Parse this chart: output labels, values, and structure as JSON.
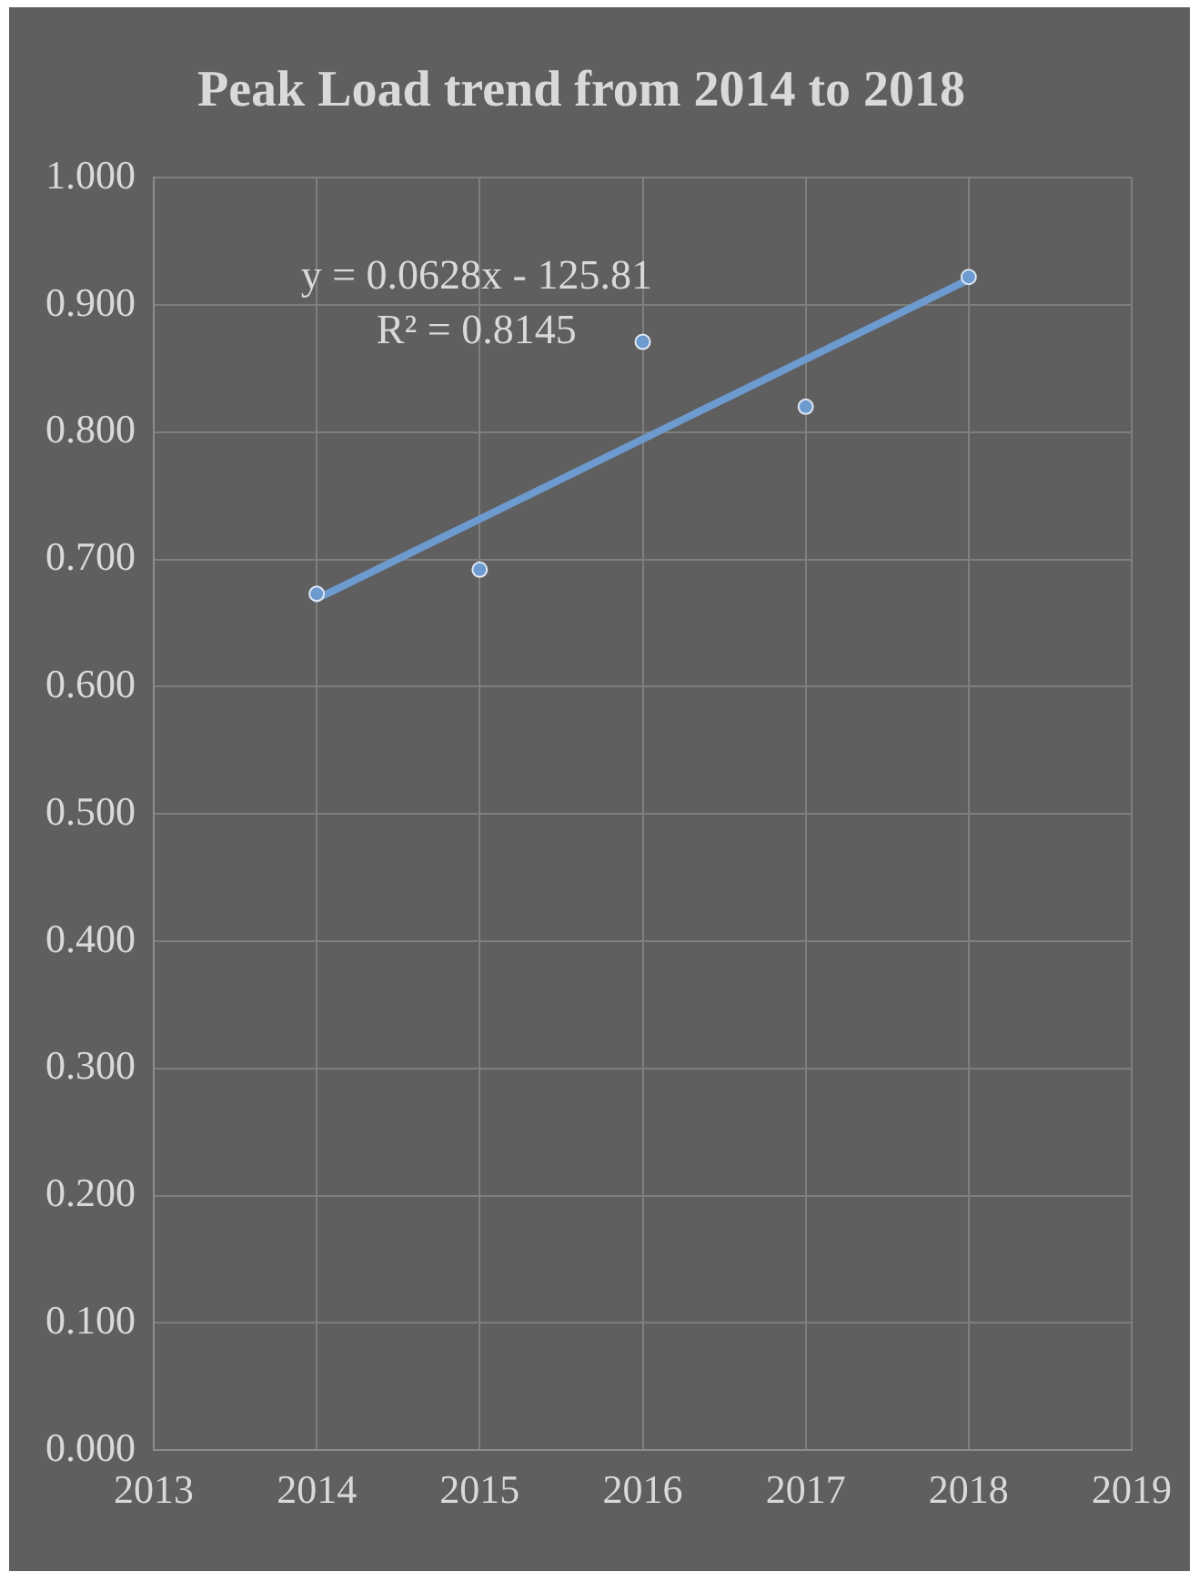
{
  "chart_data": {
    "type": "scatter",
    "title": "Peak Load trend from 2014 to 2018",
    "series": [
      {
        "type": "scatter",
        "marker": "circle",
        "color": "#6d9bd0",
        "x": [
          2014,
          2015,
          2016,
          2017,
          2018
        ],
        "values": [
          0.673,
          0.692,
          0.871,
          0.82,
          0.922
        ]
      },
      {
        "type": "line",
        "marker": "none",
        "color": "#6d9bd0",
        "x": [
          2014,
          2018
        ],
        "values": [
          0.669,
          0.92
        ]
      }
    ],
    "xlim": [
      2013,
      2019
    ],
    "xticks": [
      2013,
      2014,
      2015,
      2016,
      2017,
      2018,
      2019
    ],
    "ylim": [
      0,
      1
    ],
    "yticks": [
      {
        "value": 0,
        "label": "0.000"
      },
      {
        "value": 0.1,
        "label": "0.100"
      },
      {
        "value": 0.2,
        "label": "0.200"
      },
      {
        "value": 0.3,
        "label": "0.300"
      },
      {
        "value": 0.4,
        "label": "0.400"
      },
      {
        "value": 0.5,
        "label": "0.500"
      },
      {
        "value": 0.6,
        "label": "0.600"
      },
      {
        "value": 0.7,
        "label": "0.700"
      },
      {
        "value": 0.8,
        "label": "0.800"
      },
      {
        "value": 0.9,
        "label": "0.900"
      },
      {
        "value": 1,
        "label": "1.000"
      }
    ],
    "annotations": [
      "y = 0.0628x - 125.81",
      "R² = 0.8145"
    ],
    "grid": true,
    "legend": false,
    "line_style": "solid"
  }
}
